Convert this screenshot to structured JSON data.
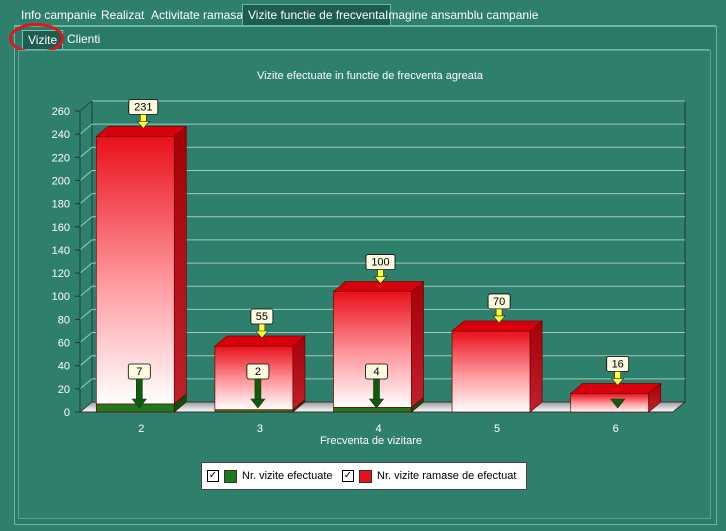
{
  "tabs": [
    {
      "label": "Info campanie",
      "active": false
    },
    {
      "label": "Realizat",
      "active": false
    },
    {
      "label": "Activitate ramasa",
      "active": false
    },
    {
      "label": "Vizite functie de frecventa",
      "active": true
    },
    {
      "label": "Imagine ansamblu campanie",
      "active": false
    }
  ],
  "subtabs": [
    {
      "label": "Vizite",
      "active": true
    },
    {
      "label": "Clienti",
      "active": false
    }
  ],
  "legend": {
    "item1": {
      "label": "Nr. vizite efectuate",
      "checked": "✓",
      "color": "#1a7a1a"
    },
    "item2": {
      "label": "Nr. vizite ramase de efectuat",
      "checked": "✓",
      "color": "#e8101a"
    }
  },
  "chart_data": {
    "type": "bar",
    "title": "Vizite efectuate in functie de frecventa agreata",
    "xlabel": "Frecventa de vizitare",
    "ylabel": "",
    "ylim": [
      0,
      260
    ],
    "yticks": [
      0,
      20,
      40,
      60,
      80,
      100,
      120,
      140,
      160,
      180,
      200,
      220,
      240,
      260
    ],
    "categories": [
      "2",
      "3",
      "4",
      "5",
      "6"
    ],
    "series": [
      {
        "name": "Nr. vizite efectuate",
        "color": "#1a7a1a",
        "values": [
          7,
          2,
          4,
          null,
          null
        ],
        "labels": [
          "7",
          "2",
          "4",
          "",
          ""
        ]
      },
      {
        "name": "Nr. vizite ramase de efectuat",
        "color": "#e8101a",
        "values": [
          231,
          55,
          100,
          70,
          16
        ],
        "labels": [
          "231",
          "55",
          "100",
          "70",
          "16"
        ]
      }
    ],
    "stacked": true,
    "grid": true
  }
}
